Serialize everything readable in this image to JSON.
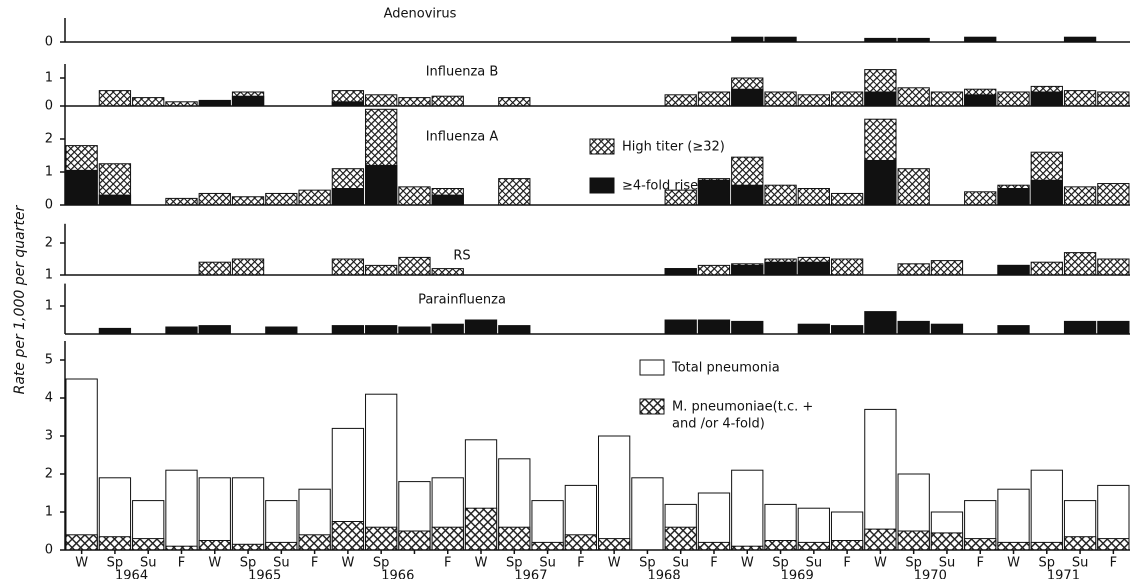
{
  "ylabel": "Rate per 1,000 per quarter",
  "chart_data": [
    {
      "type": "bar",
      "title": "Adenovirus",
      "overlay": true,
      "ylim": [
        0,
        1
      ],
      "yticks": [
        0
      ],
      "series": [
        {
          "pattern": "solid",
          "values": [
            null,
            null,
            null,
            null,
            null,
            null,
            null,
            null,
            null,
            null,
            null,
            null,
            null,
            null,
            null,
            null,
            null,
            null,
            null,
            null,
            0.2,
            0.2,
            null,
            null,
            0.15,
            0.15,
            null,
            0.2,
            null,
            null,
            0.2,
            null
          ]
        }
      ]
    },
    {
      "type": "bar",
      "title": "Influenza B",
      "overlay": true,
      "ylim": [
        0,
        1.5
      ],
      "yticks": [
        0,
        1
      ],
      "series": [
        {
          "pattern": "hatch",
          "values": [
            null,
            0.55,
            0.3,
            0.15,
            null,
            0.5,
            null,
            null,
            0.55,
            0.4,
            0.3,
            0.35,
            null,
            0.3,
            null,
            null,
            null,
            null,
            0.4,
            0.5,
            1.0,
            0.5,
            0.4,
            0.5,
            1.3,
            0.65,
            0.5,
            0.6,
            0.5,
            0.7,
            0.55,
            0.5
          ]
        },
        {
          "pattern": "solid",
          "values": [
            null,
            null,
            null,
            null,
            0.2,
            0.35,
            null,
            null,
            0.15,
            null,
            null,
            null,
            null,
            null,
            null,
            null,
            null,
            null,
            null,
            null,
            0.6,
            null,
            null,
            null,
            0.5,
            null,
            null,
            0.4,
            null,
            0.5,
            null,
            null
          ]
        }
      ]
    },
    {
      "type": "bar",
      "title": "Influenza A",
      "overlay": true,
      "ylim": [
        0,
        3
      ],
      "yticks": [
        0,
        1,
        2
      ],
      "series": [
        {
          "name": [
            "High titer (≥32)"
          ],
          "pattern": "hatch",
          "values": [
            1.8,
            1.25,
            null,
            0.2,
            0.35,
            0.25,
            0.35,
            0.45,
            1.1,
            2.9,
            0.55,
            0.5,
            null,
            0.8,
            null,
            null,
            null,
            null,
            0.45,
            0.8,
            1.45,
            0.6,
            0.5,
            0.35,
            2.6,
            1.1,
            null,
            0.4,
            0.6,
            1.6,
            0.55,
            0.65
          ]
        },
        {
          "name": [
            "≥4-fold rise"
          ],
          "pattern": "solid",
          "values": [
            1.05,
            0.3,
            null,
            null,
            null,
            null,
            null,
            null,
            0.5,
            1.2,
            null,
            0.3,
            null,
            null,
            null,
            null,
            null,
            null,
            null,
            0.75,
            0.6,
            null,
            null,
            null,
            1.35,
            null,
            null,
            null,
            0.5,
            0.75,
            null,
            null
          ]
        }
      ]
    },
    {
      "type": "bar",
      "title": "RS",
      "overlay": true,
      "ylim": [
        1,
        2.6
      ],
      "yticks": [
        1,
        2
      ],
      "series": [
        {
          "pattern": "hatch",
          "values": [
            null,
            null,
            null,
            null,
            1.4,
            1.5,
            null,
            null,
            1.5,
            1.3,
            1.55,
            1.2,
            null,
            null,
            null,
            null,
            null,
            null,
            1.2,
            1.3,
            1.35,
            1.5,
            1.55,
            1.5,
            null,
            1.35,
            1.45,
            null,
            1.3,
            1.4,
            1.7,
            1.5
          ]
        },
        {
          "pattern": "solid",
          "values": [
            null,
            null,
            null,
            null,
            null,
            null,
            null,
            null,
            null,
            null,
            null,
            null,
            null,
            null,
            null,
            null,
            null,
            null,
            1.2,
            null,
            1.3,
            1.4,
            1.4,
            null,
            null,
            null,
            null,
            null,
            1.3,
            null,
            null,
            null
          ]
        }
      ]
    },
    {
      "type": "bar",
      "title": "Parainfluenza",
      "overlay": true,
      "ylim": [
        0,
        1.8
      ],
      "yticks": [
        1
      ],
      "series": [
        {
          "pattern": "solid",
          "values": [
            null,
            0.2,
            null,
            0.25,
            0.3,
            null,
            0.25,
            null,
            0.3,
            0.3,
            0.25,
            0.35,
            0.5,
            0.3,
            null,
            null,
            null,
            null,
            0.5,
            0.5,
            0.45,
            null,
            0.35,
            0.3,
            0.8,
            0.45,
            0.35,
            null,
            0.3,
            null,
            0.45,
            0.45
          ]
        }
      ]
    },
    {
      "type": "bar",
      "overlay": true,
      "ylim": [
        0,
        5.5
      ],
      "yticks": [
        0,
        1,
        2,
        3,
        4,
        5
      ],
      "categories": [
        "W",
        "Sp",
        "Su",
        "F",
        "W",
        "Sp",
        "Su",
        "F",
        "W",
        "Sp",
        null,
        "F",
        "W",
        "Sp",
        "Su",
        "F",
        "W",
        "Sp",
        "Su",
        "F",
        "W",
        "Sp",
        "Su",
        "F",
        "W",
        "Sp",
        "Su",
        "F",
        "W",
        "Sp",
        "Su",
        "F"
      ],
      "years": [
        "1964",
        "1965",
        "1966",
        "1967",
        "1968",
        "1969",
        "1970",
        "1971"
      ],
      "series": [
        {
          "name": [
            "Total pneumonia"
          ],
          "pattern": "white",
          "values": [
            4.5,
            1.9,
            1.3,
            2.1,
            1.9,
            1.9,
            1.3,
            1.6,
            3.2,
            4.1,
            1.8,
            1.9,
            2.9,
            2.4,
            1.3,
            1.7,
            3.0,
            1.9,
            1.2,
            1.5,
            2.1,
            1.2,
            1.1,
            1.0,
            3.7,
            2.0,
            1.0,
            1.3,
            1.6,
            2.1,
            1.3,
            1.7
          ]
        },
        {
          "name": [
            "M. pneumoniae(t.c. +",
            "and /or 4-fold)"
          ],
          "pattern": "cross",
          "values": [
            0.4,
            0.35,
            0.3,
            0.1,
            0.25,
            0.15,
            0.2,
            0.4,
            0.75,
            0.6,
            0.5,
            0.6,
            1.1,
            0.6,
            0.2,
            0.4,
            0.3,
            null,
            0.6,
            0.2,
            0.1,
            0.25,
            0.2,
            0.25,
            0.55,
            0.5,
            0.45,
            0.3,
            0.2,
            0.2,
            0.35,
            0.3
          ]
        }
      ]
    }
  ]
}
